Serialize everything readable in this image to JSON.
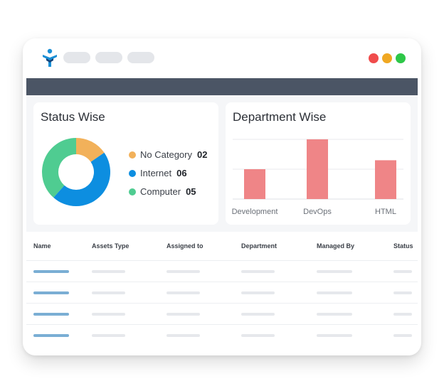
{
  "window": {
    "accent": "#7aaed4",
    "controls": [
      {
        "name": "close",
        "color": "#f04c4c"
      },
      {
        "name": "minimize",
        "color": "#f0a822"
      },
      {
        "name": "maximize",
        "color": "#2ec748"
      }
    ]
  },
  "status_card": {
    "title": "Status Wise",
    "legend": [
      {
        "label": "No Category",
        "count": "02",
        "color": "#f2b15a"
      },
      {
        "label": "Internet",
        "count": "06",
        "color": "#0d8ee0"
      },
      {
        "label": "Computer",
        "count": "05",
        "color": "#4fcc91"
      }
    ]
  },
  "department_card": {
    "title": "Department Wise"
  },
  "chart_data": [
    {
      "type": "pie",
      "categories": [
        "No Category",
        "Internet",
        "Computer"
      ],
      "values": [
        2,
        6,
        5
      ],
      "colors": [
        "#f2b15a",
        "#0d8ee0",
        "#4fcc91"
      ],
      "donut": true,
      "legend": "right"
    },
    {
      "type": "bar",
      "categories": [
        "Development",
        "DevOps",
        "HTML"
      ],
      "values": [
        2,
        4,
        2.6
      ],
      "ylim": [
        0,
        4
      ],
      "color": "#ef8587",
      "grid": true
    }
  ],
  "table": {
    "columns": [
      "Name",
      "Assets Type",
      "Assigned to",
      "Department",
      "Managed By",
      "Status"
    ],
    "row_count": 4
  }
}
